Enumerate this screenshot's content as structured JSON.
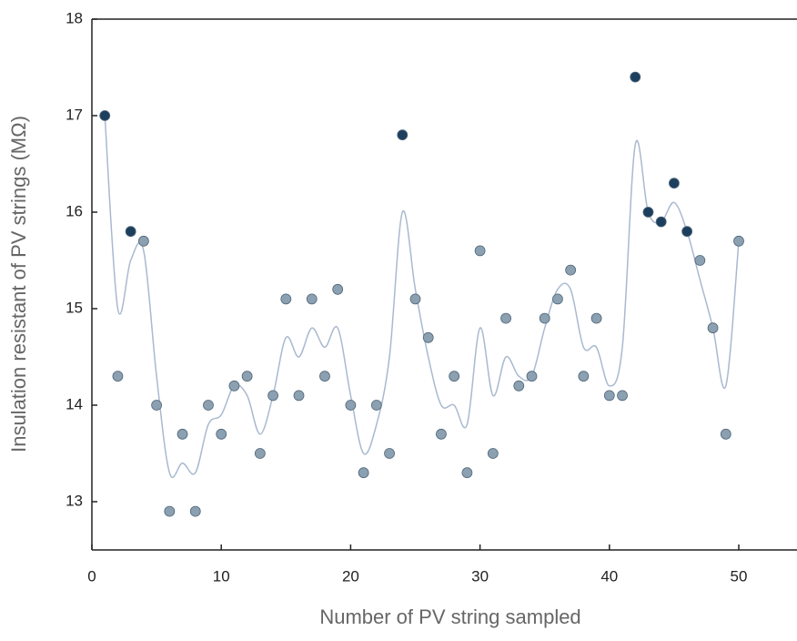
{
  "chart_data": {
    "type": "scatter",
    "xlabel": "Number of PV string sampled",
    "ylabel": "Insulation resistant of PV strings (MΩ)",
    "x": [
      1,
      2,
      3,
      4,
      5,
      6,
      7,
      8,
      9,
      10,
      11,
      12,
      13,
      14,
      15,
      16,
      17,
      18,
      19,
      20,
      21,
      22,
      23,
      24,
      25,
      26,
      27,
      28,
      29,
      30,
      31,
      32,
      33,
      34,
      35,
      36,
      37,
      38,
      39,
      40,
      41,
      42,
      43,
      44,
      45,
      46,
      47,
      48,
      49,
      50
    ],
    "series": [
      {
        "values": [
          17.0,
          14.3,
          15.8,
          15.7,
          14.0,
          12.9,
          13.7,
          12.9,
          14.0,
          13.7,
          14.2,
          14.3,
          13.5,
          14.1,
          15.1,
          14.1,
          15.1,
          14.3,
          15.2,
          14.0,
          13.3,
          14.0,
          13.5,
          16.8,
          15.1,
          14.7,
          13.7,
          14.3,
          13.3,
          15.6,
          13.5,
          14.9,
          14.2,
          14.3,
          14.9,
          15.1,
          15.4,
          14.3,
          14.9,
          14.1,
          14.1,
          17.4,
          16.0,
          15.9,
          16.3,
          15.8,
          15.5,
          14.8,
          13.7,
          15.7
        ],
        "colors": [
          "#1d3f5e",
          "#8ba0b0",
          "#1d3f5e",
          "#8ba0b0",
          "#8ba0b0",
          "#8ba0b0",
          "#8ba0b0",
          "#8ba0b0",
          "#8ba0b0",
          "#8ba0b0",
          "#8ba0b0",
          "#8ba0b0",
          "#8ba0b0",
          "#8ba0b0",
          "#8ba0b0",
          "#8ba0b0",
          "#8ba0b0",
          "#8ba0b0",
          "#8ba0b0",
          "#8ba0b0",
          "#8ba0b0",
          "#8ba0b0",
          "#8ba0b0",
          "#1d3f5e",
          "#8ba0b0",
          "#8ba0b0",
          "#8ba0b0",
          "#8ba0b0",
          "#8ba0b0",
          "#8ba0b0",
          "#8ba0b0",
          "#8ba0b0",
          "#8ba0b0",
          "#8ba0b0",
          "#8ba0b0",
          "#8ba0b0",
          "#8ba0b0",
          "#8ba0b0",
          "#8ba0b0",
          "#8ba0b0",
          "#8ba0b0",
          "#1d3f5e",
          "#1d3f5e",
          "#1d3f5e",
          "#1d3f5e",
          "#1d3f5e",
          "#8ba0b0",
          "#8ba0b0",
          "#8ba0b0",
          "#8ba0b0"
        ]
      },
      {
        "type": "line",
        "color": "#a9b9cf",
        "values": [
          17.0,
          15.0,
          15.5,
          15.6,
          14.3,
          13.3,
          13.4,
          13.3,
          13.8,
          13.9,
          14.2,
          14.1,
          13.7,
          14.1,
          14.7,
          14.5,
          14.8,
          14.6,
          14.8,
          14.1,
          13.5,
          13.8,
          14.5,
          16.0,
          15.2,
          14.5,
          14.0,
          14.0,
          13.8,
          14.8,
          14.1,
          14.5,
          14.3,
          14.3,
          14.8,
          15.2,
          15.2,
          14.6,
          14.6,
          14.2,
          14.6,
          16.7,
          16.0,
          15.9,
          16.1,
          15.8,
          15.3,
          14.8,
          14.2,
          15.7
        ]
      }
    ],
    "xlim": [
      0,
      54.5
    ],
    "ylim": [
      12.5,
      18
    ],
    "xticks": [
      0,
      10,
      20,
      30,
      40,
      50
    ],
    "yticks": [
      13,
      14,
      15,
      16,
      17,
      18
    ]
  }
}
